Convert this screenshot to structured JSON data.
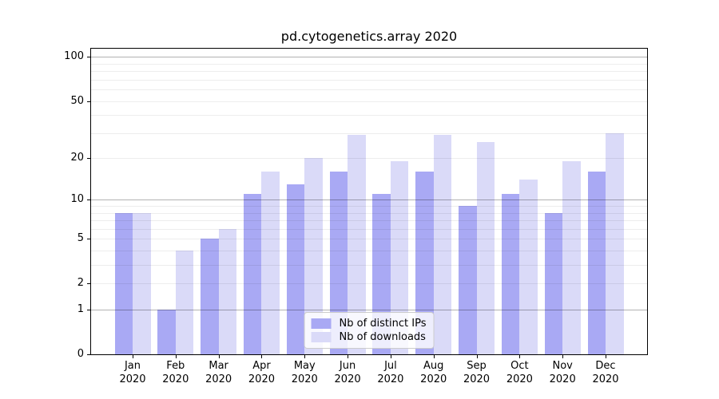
{
  "title": "pd.cytogenetics.array 2020",
  "chart_data": {
    "type": "bar",
    "title": "pd.cytogenetics.array 2020",
    "categories": [
      {
        "month": "Jan",
        "year": "2020"
      },
      {
        "month": "Feb",
        "year": "2020"
      },
      {
        "month": "Mar",
        "year": "2020"
      },
      {
        "month": "Apr",
        "year": "2020"
      },
      {
        "month": "May",
        "year": "2020"
      },
      {
        "month": "Jun",
        "year": "2020"
      },
      {
        "month": "Jul",
        "year": "2020"
      },
      {
        "month": "Aug",
        "year": "2020"
      },
      {
        "month": "Sep",
        "year": "2020"
      },
      {
        "month": "Oct",
        "year": "2020"
      },
      {
        "month": "Nov",
        "year": "2020"
      },
      {
        "month": "Dec",
        "year": "2020"
      }
    ],
    "series": [
      {
        "key": "distinct-ips",
        "name": "Nb of distinct IPs",
        "color": "#a9a9f4",
        "values": [
          8,
          1,
          5,
          11,
          13,
          16,
          11,
          16,
          9,
          11,
          8,
          16
        ]
      },
      {
        "key": "downloads",
        "name": "Nb of downloads",
        "color": "#dadaf8",
        "values": [
          8,
          4,
          6,
          16,
          20,
          29,
          19,
          29,
          26,
          14,
          19,
          30
        ]
      }
    ],
    "y_axis": {
      "scale": "log10(1+value)",
      "ticks": [
        0,
        1,
        2,
        5,
        10,
        20,
        50,
        100
      ],
      "max": 114,
      "major_gridlines": [
        1,
        10,
        100
      ],
      "minor_gridlines": [
        2,
        3,
        4,
        5,
        6,
        7,
        8,
        9,
        20,
        30,
        40,
        50,
        60,
        70,
        80,
        90
      ]
    },
    "xlabel": "",
    "ylabel": "",
    "grid": true,
    "legend_position": "lower center",
    "background": "#ffffff"
  }
}
